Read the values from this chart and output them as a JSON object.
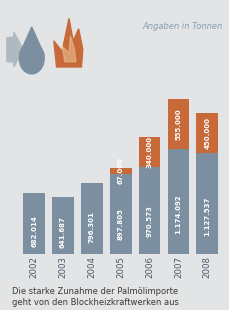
{
  "years": [
    "2002",
    "2003",
    "2004",
    "2005",
    "2006",
    "2007",
    "2008"
  ],
  "gray_values": [
    682014,
    641687,
    796301,
    897805,
    970573,
    1174092,
    1127537
  ],
  "orange_values": [
    0,
    0,
    0,
    67000,
    340000,
    555000,
    450000
  ],
  "gray_labels": [
    "682.014",
    "641.687",
    "796.301",
    "897.805",
    "970.573",
    "1.174.092",
    "1.127.537"
  ],
  "orange_labels": [
    "",
    "",
    "",
    "67.000",
    "340.000",
    "555.000",
    "450.000"
  ],
  "bar_color_gray": "#7b8fa0",
  "bar_color_orange": "#c8693a",
  "bg_color": "#e2e4e6",
  "text_color_white": "#ffffff",
  "annotation": "Angaben in Tonnen",
  "caption_line1": "Die starke Zunahme der Palmölimporte",
  "caption_line2": "geht von den Blockheizkraftwerken aus",
  "annotation_color": "#8a9db0",
  "caption_color": "#3a3a3a",
  "ylim": [
    0,
    1800000
  ]
}
